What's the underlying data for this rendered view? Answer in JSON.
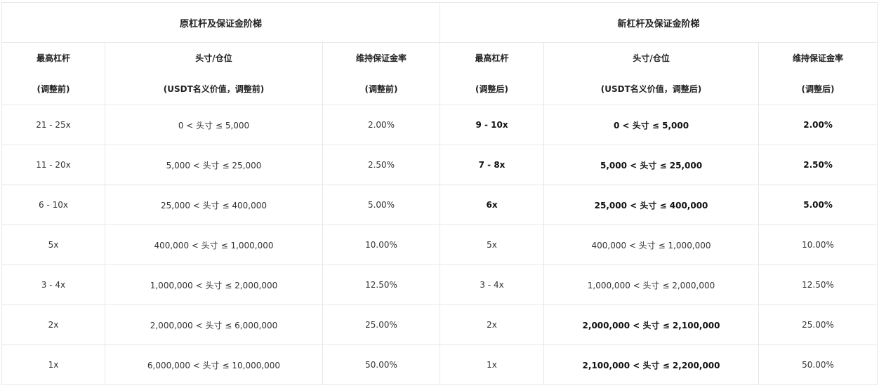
{
  "groups": [
    "原杠杆及保证金阶梯",
    "新杠杆及保证金阶梯"
  ],
  "columns": [
    {
      "line1": "最高杠杆",
      "line2": "(调整前)"
    },
    {
      "line1": "头寸/仓位",
      "line2": "(USDT名义价值，调整前)"
    },
    {
      "line1": "维持保证金率",
      "line2": "(调整前)"
    },
    {
      "line1": "最高杠杆",
      "line2": "(调整后)"
    },
    {
      "line1": "头寸/仓位",
      "line2": "(USDT名义价值，调整后)"
    },
    {
      "line1": "维持保证金率",
      "line2": "(调整后)"
    }
  ],
  "rows": [
    [
      {
        "text": "21 - 25x"
      },
      {
        "text": "0 < 头寸 ≤ 5,000"
      },
      {
        "text": "2.00%"
      },
      {
        "text": "9 - 10x",
        "bold": true
      },
      {
        "text": "0 < 头寸 ≤ 5,000",
        "bold": true
      },
      {
        "text": "2.00%",
        "bold": true
      }
    ],
    [
      {
        "text": "11 - 20x"
      },
      {
        "text": "5,000 < 头寸 ≤ 25,000"
      },
      {
        "text": "2.50%"
      },
      {
        "text": "7 - 8x",
        "bold": true
      },
      {
        "text": "5,000 < 头寸 ≤ 25,000",
        "bold": true
      },
      {
        "text": "2.50%",
        "bold": true
      }
    ],
    [
      {
        "text": "6 - 10x"
      },
      {
        "text": "25,000 < 头寸 ≤ 400,000"
      },
      {
        "text": "5.00%"
      },
      {
        "text": "6x",
        "bold": true
      },
      {
        "text": "25,000 < 头寸 ≤ 400,000",
        "bold": true
      },
      {
        "text": "5.00%",
        "bold": true
      }
    ],
    [
      {
        "text": "5x"
      },
      {
        "text": "400,000 < 头寸 ≤ 1,000,000"
      },
      {
        "text": "10.00%"
      },
      {
        "text": "5x"
      },
      {
        "text": "400,000 < 头寸 ≤ 1,000,000"
      },
      {
        "text": "10.00%"
      }
    ],
    [
      {
        "text": "3 - 4x"
      },
      {
        "text": "1,000,000 < 头寸 ≤ 2,000,000"
      },
      {
        "text": "12.50%"
      },
      {
        "text": "3 - 4x"
      },
      {
        "text": "1,000,000 < 头寸 ≤ 2,000,000"
      },
      {
        "text": "12.50%"
      }
    ],
    [
      {
        "text": "2x"
      },
      {
        "text": "2,000,000 < 头寸 ≤ 6,000,000"
      },
      {
        "text": "25.00%"
      },
      {
        "text": "2x"
      },
      {
        "text": "2,000,000 < 头寸 ≤ 2,100,000",
        "bold": true
      },
      {
        "text": "25.00%"
      }
    ],
    [
      {
        "text": "1x"
      },
      {
        "text": "6,000,000 < 头寸 ≤ 10,000,000"
      },
      {
        "text": "50.00%"
      },
      {
        "text": "1x"
      },
      {
        "text": "2,100,000 < 头寸 ≤ 2,200,000",
        "bold": true
      },
      {
        "text": "50.00%"
      }
    ]
  ]
}
